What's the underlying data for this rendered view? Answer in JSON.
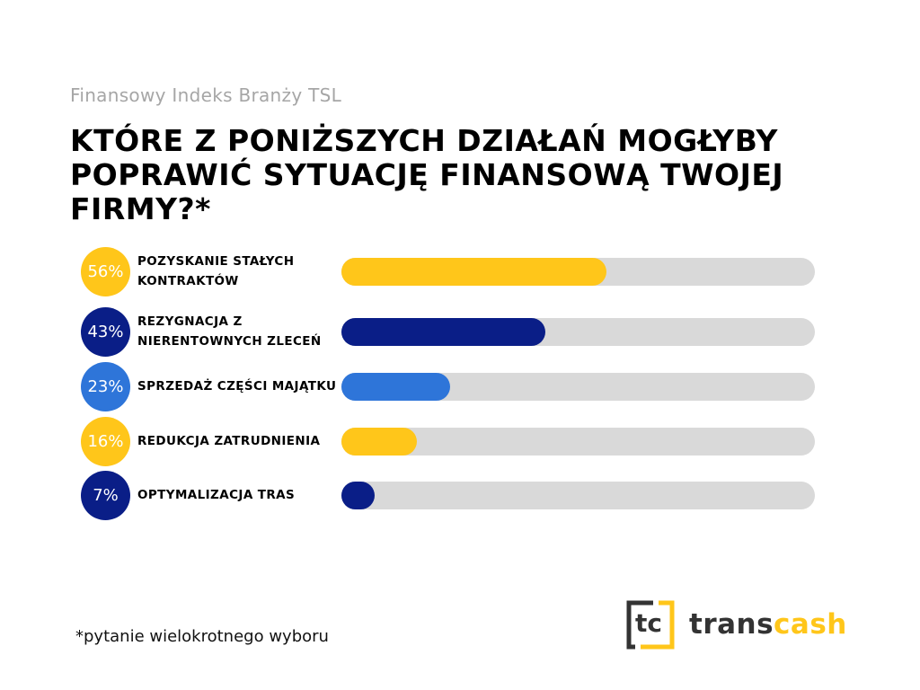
{
  "header": {
    "subtitle": "Finansowy Indeks Branży TSL",
    "title": "KTÓRE Z PONIŻSZYCH DZIAŁAŃ MOGŁYBY POPRAWIĆ SYTUACJĘ FINANSOWĄ TWOJEJ FIRMY?*"
  },
  "chart_data": {
    "type": "bar",
    "orientation": "horizontal",
    "ylim": [
      0,
      100
    ],
    "categories": [
      "POZYSKANIE STAŁYCH KONTRAKTÓW",
      "REZYGNACJA Z NIERENTOWNYCH ZLECEŃ",
      "SPRZEDAŻ CZĘŚCI MAJĄTKU",
      "REDUKCJA ZATRUDNIENIA",
      "OPTYMALIZACJA TRAS"
    ],
    "values": [
      56,
      43,
      23,
      16,
      7
    ],
    "data_labels": [
      "56%",
      "43%",
      "23%",
      "16%",
      "7%"
    ],
    "colors": [
      "#ffc61a",
      "#0a1e87",
      "#2e75d9",
      "#ffc61a",
      "#0a1e87"
    ],
    "track_color": "#d9d9d9"
  },
  "footnote": "*pytanie wielokrotnego wyboru",
  "logo": {
    "mark": "tc",
    "word_dark": "trans",
    "word_accent": "cash",
    "accent_color": "#ffc61a"
  }
}
